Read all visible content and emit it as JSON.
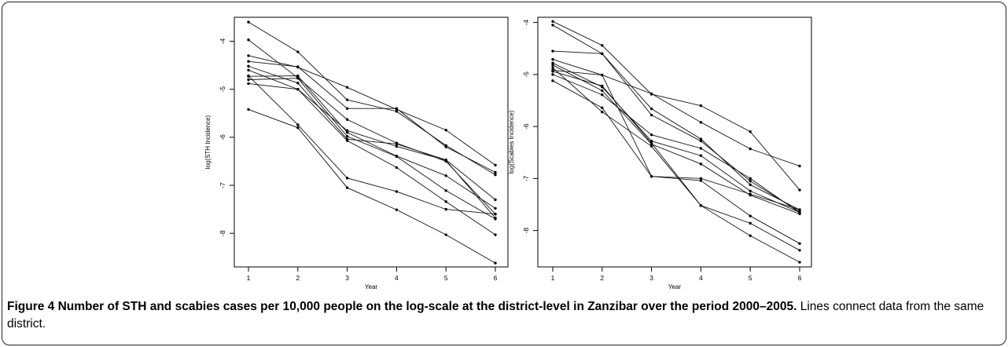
{
  "caption": {
    "label": "Figure 4",
    "title": "Number of STH and scabies cases per 10,000 people on the log-scale at the district-level in Zanzibar over the period 2000–2005.",
    "text": "Lines connect data from the same district."
  },
  "chart_data": [
    {
      "type": "line",
      "xlabel": "Year",
      "ylabel": "log(STH Incidence)",
      "xlim": [
        1,
        6
      ],
      "ylim": [
        -8.7,
        -3.5
      ],
      "x_ticks": [
        "1",
        "2",
        "3",
        "4",
        "5",
        "6"
      ],
      "y_ticks": [
        "-4",
        "-5",
        "-6",
        "-7",
        "-8"
      ],
      "x": [
        1,
        2,
        3,
        4,
        5,
        6
      ],
      "series": [
        {
          "values": [
            -3.6,
            -4.22,
            -5.22,
            -5.46,
            -6.17,
            -6.78
          ]
        },
        {
          "values": [
            -3.97,
            -4.76,
            -5.63,
            -6.12,
            -6.5,
            -7.6
          ]
        },
        {
          "values": [
            -4.3,
            -4.54,
            -4.96,
            -5.42,
            -5.85,
            -6.58
          ]
        },
        {
          "values": [
            -4.42,
            -4.53,
            -5.4,
            -5.4,
            -6.2,
            -6.73
          ]
        },
        {
          "values": [
            -4.52,
            -4.87,
            -6.04,
            -6.14,
            -6.47,
            -7.3
          ]
        },
        {
          "values": [
            -4.6,
            -5.0,
            -5.86,
            -6.19,
            -6.48,
            -7.68
          ]
        },
        {
          "values": [
            -4.73,
            -4.72,
            -5.9,
            -6.39,
            -6.8,
            -7.48
          ]
        },
        {
          "values": [
            -4.8,
            -4.77,
            -5.98,
            -6.4,
            -7.11,
            -7.7
          ]
        },
        {
          "values": [
            -4.88,
            -5.0,
            -6.07,
            -6.63,
            -7.34,
            -8.03
          ]
        },
        {
          "values": [
            -4.72,
            -5.74,
            -6.85,
            -7.13,
            -7.5,
            -7.6
          ]
        },
        {
          "values": [
            -5.42,
            -5.8,
            -7.05,
            -7.51,
            -8.03,
            -8.62
          ]
        }
      ]
    },
    {
      "type": "line",
      "xlabel": "Year",
      "ylabel": "log(Scabies Incidence)",
      "xlim": [
        1,
        6
      ],
      "ylim": [
        -8.7,
        -3.9
      ],
      "x_ticks": [
        "1",
        "2",
        "3",
        "4",
        "5",
        "6"
      ],
      "y_ticks": [
        "-4",
        "-5",
        "-6",
        "-7",
        "-8"
      ],
      "x": [
        1,
        2,
        3,
        4,
        5,
        6
      ],
      "series": [
        {
          "values": [
            -3.98,
            -4.44,
            -5.38,
            -5.6,
            -6.1,
            -7.22
          ]
        },
        {
          "values": [
            -4.05,
            -4.6,
            -5.78,
            -6.28,
            -7.05,
            -7.64
          ]
        },
        {
          "values": [
            -4.55,
            -4.6,
            -5.66,
            -6.24,
            -7.12,
            -7.6
          ]
        },
        {
          "values": [
            -4.71,
            -5.01,
            -5.37,
            -5.92,
            -6.43,
            -6.76
          ]
        },
        {
          "values": [
            -4.78,
            -5.24,
            -6.28,
            -6.56,
            -7.24,
            -7.65
          ]
        },
        {
          "values": [
            -4.82,
            -5.31,
            -6.34,
            -6.72,
            -7.32,
            -7.68
          ]
        },
        {
          "values": [
            -4.92,
            -5.01,
            -6.96,
            -7.0,
            -7.3,
            -7.6
          ]
        },
        {
          "values": [
            -5.0,
            -5.39,
            -6.16,
            -6.42,
            -7.0,
            -7.66
          ]
        },
        {
          "values": [
            -5.12,
            -5.64,
            -6.96,
            -7.04,
            -7.72,
            -8.25
          ]
        },
        {
          "values": [
            -4.87,
            -5.72,
            -6.38,
            -7.52,
            -7.86,
            -8.38
          ]
        },
        {
          "values": [
            -4.94,
            -5.22,
            -6.32,
            -7.52,
            -8.1,
            -8.61
          ]
        }
      ]
    }
  ]
}
